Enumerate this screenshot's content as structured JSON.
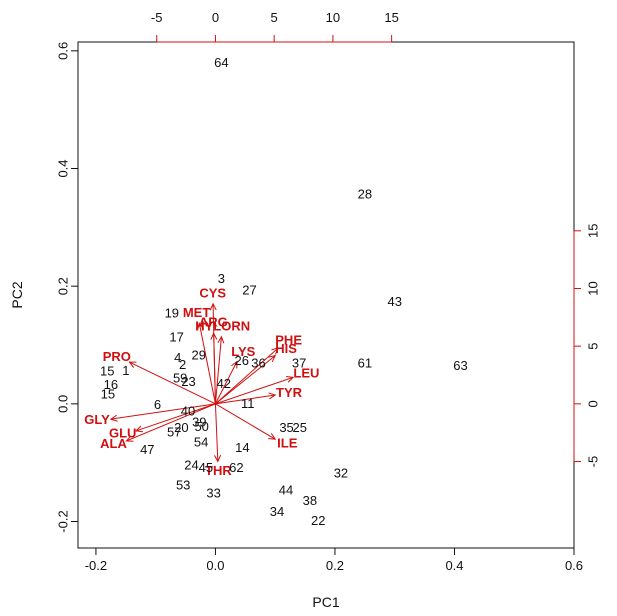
{
  "chart_data": {
    "type": "scatter",
    "subtype": "pca-biplot",
    "title": "",
    "xlabel": "PC1",
    "ylabel": "PC2",
    "xlim": [
      -0.23,
      0.6
    ],
    "ylim": [
      -0.245,
      0.615
    ],
    "x_ticks": [
      "-0.2",
      "0.0",
      "0.2",
      "0.4",
      "0.6"
    ],
    "x_tick_values": [
      -0.2,
      0.0,
      0.2,
      0.4,
      0.6
    ],
    "y_ticks": [
      "-0.2",
      "0.0",
      "0.2",
      "0.4",
      "0.6"
    ],
    "y_tick_values": [
      -0.2,
      0.0,
      0.2,
      0.4,
      0.6
    ],
    "secondary_x_ticks": [
      "-5",
      "0",
      "5",
      "10",
      "15"
    ],
    "secondary_x_tick_values": [
      -5,
      0,
      5,
      10,
      15
    ],
    "secondary_y_ticks": [
      "-5",
      "0",
      "5",
      "10",
      "15"
    ],
    "secondary_y_tick_values": [
      -5,
      0,
      5,
      10,
      15
    ],
    "secondary_axis_color": "#d01010",
    "observation_color": "#111111",
    "variable_color": "#d01010",
    "grid": false,
    "legend": "none",
    "observations": [
      {
        "label": "64",
        "x": 0.01,
        "y": 0.578
      },
      {
        "label": "28",
        "x": 0.25,
        "y": 0.355
      },
      {
        "label": "43",
        "x": 0.3,
        "y": 0.172
      },
      {
        "label": "3",
        "x": 0.01,
        "y": 0.211
      },
      {
        "label": "27",
        "x": 0.057,
        "y": 0.192
      },
      {
        "label": "19",
        "x": -0.073,
        "y": 0.153
      },
      {
        "label": "17",
        "x": -0.065,
        "y": 0.112
      },
      {
        "label": "29",
        "x": -0.028,
        "y": 0.081
      },
      {
        "label": "4",
        "x": -0.063,
        "y": 0.077
      },
      {
        "label": "2",
        "x": -0.055,
        "y": 0.065
      },
      {
        "label": "26",
        "x": 0.044,
        "y": 0.072
      },
      {
        "label": "36",
        "x": 0.072,
        "y": 0.068
      },
      {
        "label": "37",
        "x": 0.14,
        "y": 0.068
      },
      {
        "label": "61",
        "x": 0.25,
        "y": 0.068
      },
      {
        "label": "63",
        "x": 0.41,
        "y": 0.063
      },
      {
        "label": "15",
        "x": -0.181,
        "y": 0.054
      },
      {
        "label": "1",
        "x": -0.15,
        "y": 0.055
      },
      {
        "label": "59",
        "x": -0.059,
        "y": 0.042
      },
      {
        "label": "23",
        "x": -0.045,
        "y": 0.036
      },
      {
        "label": "42",
        "x": 0.014,
        "y": 0.033
      },
      {
        "label": "16",
        "x": -0.175,
        "y": 0.031
      },
      {
        "label": "15",
        "x": -0.18,
        "y": 0.015
      },
      {
        "label": "11",
        "x": 0.054,
        "y": -0.001
      },
      {
        "label": "6",
        "x": -0.097,
        "y": -0.003
      },
      {
        "label": "40",
        "x": -0.046,
        "y": -0.014
      },
      {
        "label": "39",
        "x": -0.027,
        "y": -0.033
      },
      {
        "label": "20",
        "x": -0.057,
        "y": -0.042
      },
      {
        "label": "50",
        "x": -0.023,
        "y": -0.04
      },
      {
        "label": "57",
        "x": -0.069,
        "y": -0.05
      },
      {
        "label": "35",
        "x": 0.119,
        "y": -0.042
      },
      {
        "label": "25",
        "x": 0.141,
        "y": -0.042
      },
      {
        "label": "54",
        "x": -0.024,
        "y": -0.067
      },
      {
        "label": "47",
        "x": -0.114,
        "y": -0.079
      },
      {
        "label": "14",
        "x": 0.045,
        "y": -0.076
      },
      {
        "label": "62",
        "x": 0.035,
        "y": -0.11
      },
      {
        "label": "45",
        "x": -0.016,
        "y": -0.11
      },
      {
        "label": "24",
        "x": -0.04,
        "y": -0.106
      },
      {
        "label": "32",
        "x": 0.21,
        "y": -0.119
      },
      {
        "label": "53",
        "x": -0.054,
        "y": -0.14
      },
      {
        "label": "33",
        "x": -0.003,
        "y": -0.153
      },
      {
        "label": "44",
        "x": 0.118,
        "y": -0.148
      },
      {
        "label": "38",
        "x": 0.158,
        "y": -0.166
      },
      {
        "label": "34",
        "x": 0.103,
        "y": -0.185
      },
      {
        "label": "22",
        "x": 0.172,
        "y": -0.2
      }
    ],
    "loadings": [
      {
        "label": "CYS",
        "x": -0.004,
        "y": 0.17
      },
      {
        "label": "MET",
        "x": -0.027,
        "y": 0.137
      },
      {
        "label": "ARG",
        "x": -0.003,
        "y": 0.12
      },
      {
        "label": "HYLORN",
        "x": 0.01,
        "y": 0.114
      },
      {
        "label": "PHE",
        "x": 0.105,
        "y": 0.095
      },
      {
        "label": "HIS",
        "x": 0.1,
        "y": 0.082
      },
      {
        "label": "LYS",
        "x": 0.036,
        "y": 0.072
      },
      {
        "label": "LEU",
        "x": 0.13,
        "y": 0.045
      },
      {
        "label": "TYR",
        "x": 0.1,
        "y": 0.015
      },
      {
        "label": "PRO",
        "x": -0.144,
        "y": 0.071
      },
      {
        "label": "GLY",
        "x": -0.175,
        "y": -0.026
      },
      {
        "label": "GLU",
        "x": -0.133,
        "y": -0.046
      },
      {
        "label": "ALA",
        "x": -0.149,
        "y": -0.063
      },
      {
        "label": "ILE",
        "x": 0.1,
        "y": -0.06
      },
      {
        "label": "THR",
        "x": 0.004,
        "y": -0.098
      }
    ]
  }
}
